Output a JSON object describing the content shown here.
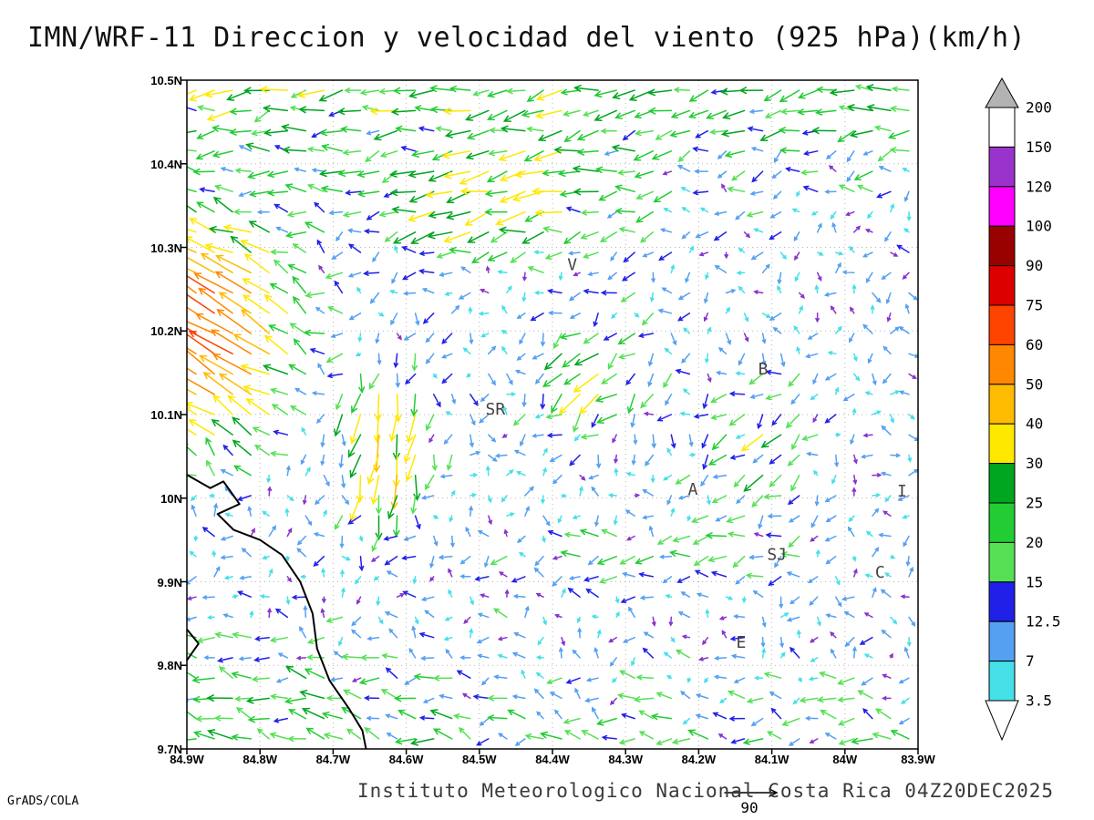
{
  "title": "IMN/WRF-11 Direccion y velocidad del viento (925 hPa)(km/h)",
  "caption": "Instituto Meteorologico Nacional Costa Rica 04Z20DEC2025",
  "attribution": "GrADS/COLA",
  "reference_vector": {
    "label": "90"
  },
  "chart_data": {
    "type": "vector-field",
    "title": "IMN/WRF-11 Direccion y velocidad del viento (925 hPa)(km/h)",
    "units": "km/h",
    "level": "925 hPa",
    "lon_range": [
      -84.9,
      -83.9
    ],
    "lat_range": [
      9.7,
      10.5
    ],
    "xlabel_ticks": [
      "84.9W",
      "84.8W",
      "84.7W",
      "84.6W",
      "84.5W",
      "84.4W",
      "84.3W",
      "84.2W",
      "84.1W",
      "84W",
      "83.9W"
    ],
    "ylabel_ticks": [
      "10.5N",
      "10.4N",
      "10.3N",
      "10.2N",
      "10.1N",
      "10N",
      "9.9N",
      "9.8N",
      "9.7N"
    ],
    "grid": "dotted",
    "legend": {
      "position": "right",
      "boundaries_top_to_bottom": [
        "200",
        "150",
        "120",
        "100",
        "90",
        "75",
        "60",
        "50",
        "40",
        "30",
        "25",
        "20",
        "15",
        "12.5",
        "7",
        "3.5"
      ],
      "colors_top_to_bottom": [
        "#ffffff",
        "#9933cc",
        "#ff00ff",
        "#990000",
        "#dd0000",
        "#ff4400",
        "#ff8800",
        "#ffbb00",
        "#ffe800",
        "#00a520",
        "#22cc33",
        "#55e055",
        "#2020e8",
        "#55a0f0",
        "#45e0e8"
      ],
      "over_color": "#b3b3b3",
      "under_color": "#ffffff"
    },
    "stations": [
      {
        "label": "V",
        "lon": -84.373,
        "lat": 10.273
      },
      {
        "label": "B",
        "lon": -84.112,
        "lat": 10.148
      },
      {
        "label": "SR",
        "lon": -84.478,
        "lat": 10.1
      },
      {
        "label": "A",
        "lon": -84.208,
        "lat": 10.004
      },
      {
        "label": "SJ",
        "lon": -84.093,
        "lat": 9.926
      },
      {
        "label": "C",
        "lon": -83.952,
        "lat": 9.905
      },
      {
        "label": "E",
        "lon": -84.142,
        "lat": 9.821
      },
      {
        "label": "I",
        "lon": -83.922,
        "lat": 10.002
      }
    ],
    "coastline": [
      [
        -84.9,
        10.028
      ],
      [
        -84.868,
        10.012
      ],
      [
        -84.85,
        10.02
      ],
      [
        -84.828,
        9.993
      ],
      [
        -84.858,
        9.981
      ],
      [
        -84.836,
        9.962
      ],
      [
        -84.8,
        9.95
      ],
      [
        -84.77,
        9.932
      ],
      [
        -84.745,
        9.9
      ],
      [
        -84.728,
        9.862
      ],
      [
        -84.722,
        9.82
      ],
      [
        -84.705,
        9.782
      ],
      [
        -84.678,
        9.748
      ],
      [
        -84.66,
        9.722
      ],
      [
        -84.655,
        9.7
      ]
    ],
    "coastline2": [
      [
        -84.9,
        9.843
      ],
      [
        -84.884,
        9.826
      ],
      [
        -84.9,
        9.806
      ]
    ],
    "wind_field": {
      "note": "approximate reconstruction of vector field",
      "cols": 40,
      "rows": 33,
      "noise": 9,
      "scale": 0.8,
      "min_len": 4,
      "blobs": [
        {
          "cx": 0.5,
          "cy": 1.06,
          "wx": 3.0,
          "wy": 0.22,
          "u": -26,
          "v": -5
        },
        {
          "cx": 0.42,
          "cy": 0.82,
          "wx": 0.16,
          "wy": 0.09,
          "u": -24,
          "v": -6
        },
        {
          "cx": 0.5,
          "cy": -0.02,
          "wx": 3.0,
          "wy": 0.17,
          "u": -15,
          "v": 2
        },
        {
          "cx": 0.02,
          "cy": 0.62,
          "wx": 0.14,
          "wy": 0.17,
          "u": -55,
          "v": 32
        },
        {
          "cx": 0.27,
          "cy": 0.46,
          "wx": 0.07,
          "wy": 0.13,
          "u": -6,
          "v": -40
        },
        {
          "cx": 0.56,
          "cy": 0.56,
          "wx": 0.09,
          "wy": 0.1,
          "u": -20,
          "v": -18
        },
        {
          "cx": 0.79,
          "cy": 0.44,
          "wx": 0.1,
          "wy": 0.13,
          "u": -16,
          "v": -12
        },
        {
          "cx": 0.62,
          "cy": 0.285,
          "wx": 0.22,
          "wy": 0.045,
          "u": -18,
          "v": 0
        },
        {
          "cx": 0.08,
          "cy": 0.1,
          "wx": 0.25,
          "wy": 0.12,
          "u": -10,
          "v": 4
        }
      ],
      "purple_color": "#8833cc",
      "purple_chance": 0.22,
      "purple_speed_max": 9
    }
  }
}
